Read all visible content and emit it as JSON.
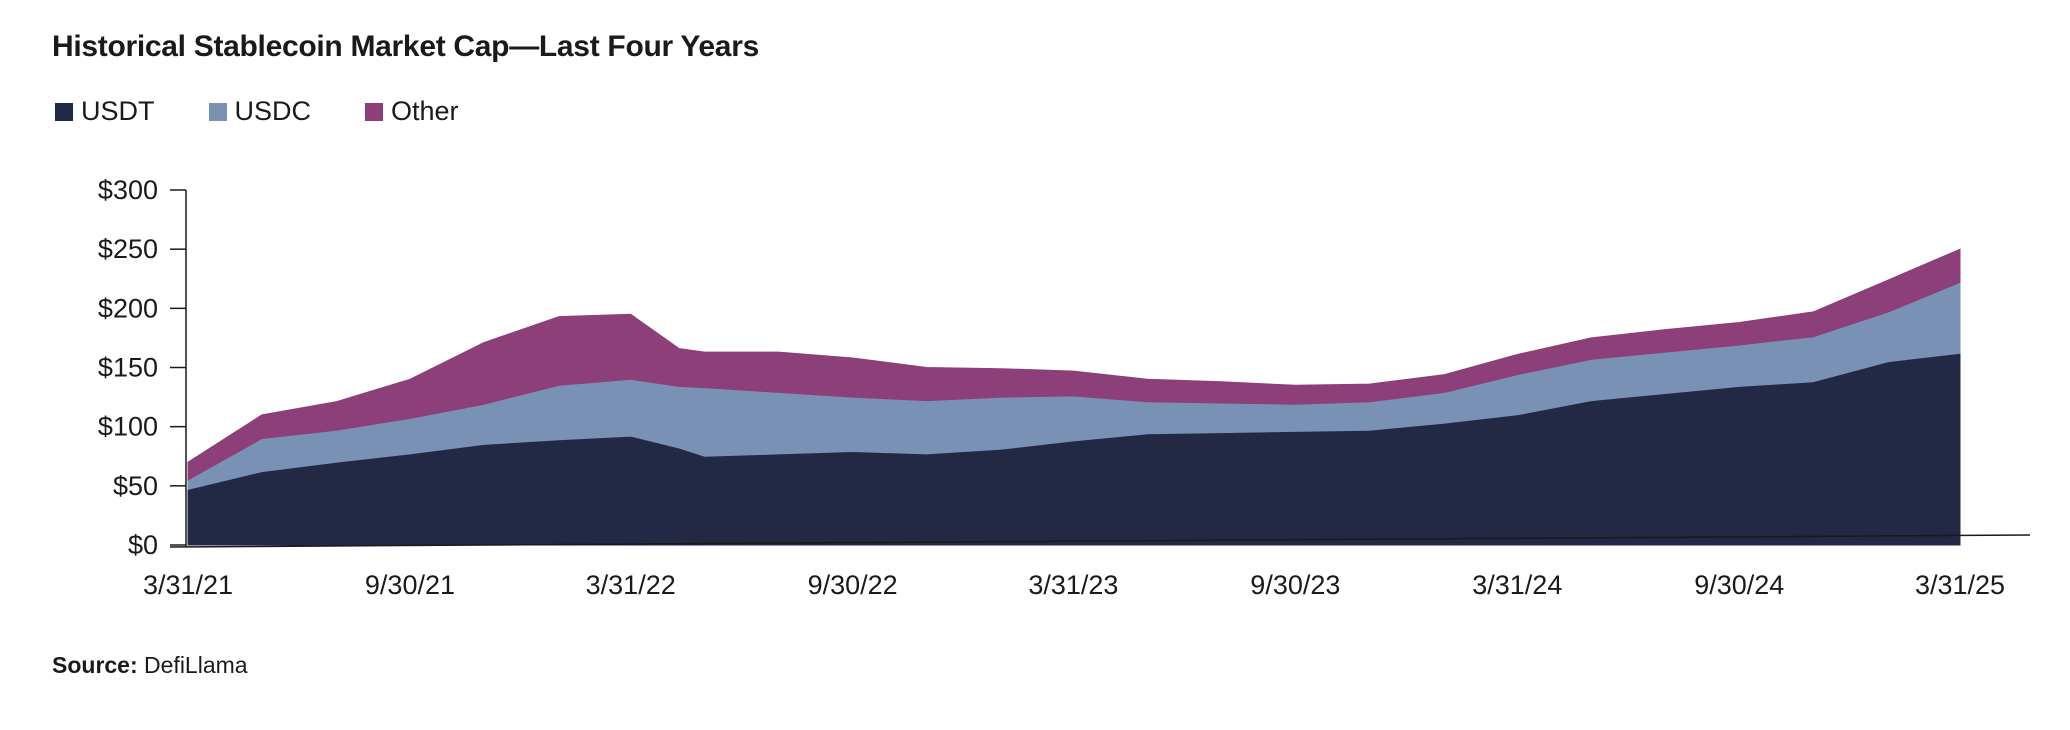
{
  "chart_data": {
    "type": "area",
    "stacked": true,
    "title": "Historical Stablecoin Market Cap—Last Four Years",
    "ylabel": "",
    "xlabel": "",
    "ylim": [
      0,
      300
    ],
    "y_ticks": [
      0,
      50,
      100,
      150,
      200,
      250,
      300
    ],
    "y_tick_labels": [
      "$0",
      "$50",
      "$100",
      "$150",
      "$200",
      "$250",
      "$300"
    ],
    "x_tick_labels": [
      "3/31/21",
      "9/30/21",
      "3/31/22",
      "9/30/22",
      "3/31/23",
      "9/30/23",
      "3/31/24",
      "9/30/24",
      "3/31/25"
    ],
    "x": [
      "3/31/21",
      "5/31/21",
      "7/31/21",
      "9/30/21",
      "11/30/21",
      "1/31/22",
      "3/31/22",
      "5/10/22",
      "5/31/22",
      "7/31/22",
      "9/30/22",
      "11/30/22",
      "1/31/23",
      "3/31/23",
      "5/31/23",
      "7/31/23",
      "9/30/23",
      "11/30/23",
      "1/31/24",
      "3/31/24",
      "5/31/24",
      "7/31/24",
      "9/30/24",
      "11/30/24",
      "1/31/25",
      "3/31/25"
    ],
    "series": [
      {
        "name": "USDT",
        "color": "#232845",
        "values": [
          47,
          62,
          70,
          77,
          85,
          89,
          92,
          82,
          75,
          77,
          79,
          77,
          81,
          88,
          94,
          95,
          96,
          97,
          103,
          110,
          122,
          128,
          134,
          138,
          155,
          162
        ]
      },
      {
        "name": "USDC",
        "color": "#7891b4",
        "values": [
          8,
          28,
          27,
          30,
          34,
          46,
          48,
          52,
          58,
          52,
          46,
          45,
          44,
          38,
          27,
          25,
          23,
          24,
          26,
          34,
          35,
          35,
          35,
          38,
          42,
          60
        ]
      },
      {
        "name": "Other",
        "color": "#8c3f78",
        "values": [
          15,
          20,
          24,
          33,
          52,
          58,
          55,
          32,
          30,
          34,
          33,
          28,
          24,
          21,
          19,
          18,
          16,
          15,
          15,
          17,
          18,
          19,
          19,
          21,
          27,
          28
        ]
      }
    ],
    "legend_position": "top-left",
    "grid": false
  },
  "source": {
    "label": "Source:",
    "text": "DefiLlama"
  }
}
